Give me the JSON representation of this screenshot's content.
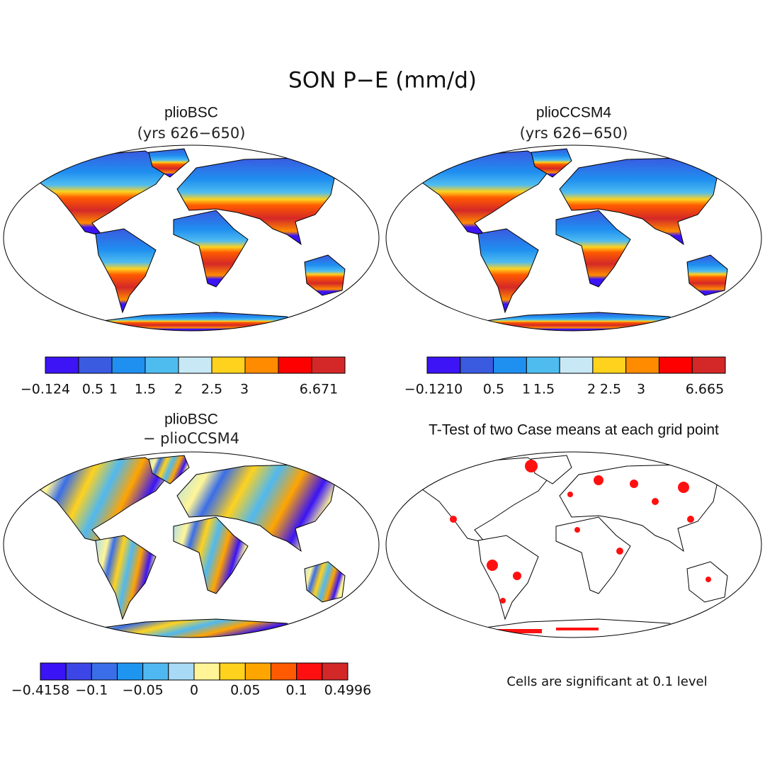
{
  "title": "SON P−E (mm/d)",
  "panels": [
    {
      "title": "plioBSC",
      "subtitle": "(yrs 626−650)",
      "colorbar": {
        "colors": [
          "#3c14f5",
          "#3a5ae0",
          "#1f8ff0",
          "#4fbcf0",
          "#c8e8f5",
          "#ffd21e",
          "#ff8c00",
          "#ff0000",
          "#d42828"
        ],
        "ticks": [
          {
            "value": -0.124,
            "label": "−0.124"
          },
          0.5,
          1,
          1.5,
          2,
          2.5,
          3,
          6.671
        ]
      }
    },
    {
      "title": "plioCCSM4",
      "subtitle": "(yrs 626−650)",
      "colorbar": {
        "colors": [
          "#3c14f5",
          "#3a5ae0",
          "#1f8ff0",
          "#4fbcf0",
          "#c8e8f5",
          "#ffd21e",
          "#ff8c00",
          "#ff0000",
          "#d42828"
        ],
        "ticks": [
          {
            "value": -0.121,
            "label": "−0.1210"
          },
          0.5,
          1,
          1.5,
          2,
          2.5,
          3,
          6.665
        ]
      }
    },
    {
      "title": "plioBSC",
      "subtitle": "− plioCCSM4",
      "colorbar": {
        "colors": [
          "#3a14f5",
          "#3c46e6",
          "#3a6ee8",
          "#1e96f0",
          "#50b8f0",
          "#a8daf5",
          "#fff596",
          "#ffd21e",
          "#ffa500",
          "#ff5a00",
          "#ff0f0f",
          "#d22828"
        ],
        "ticks": [
          {
            "value": -0.4158,
            "label": "−0.4158"
          },
          {
            "value": -0.1,
            "label": "−0.1"
          },
          {
            "value": -0.05,
            "label": "−0.05"
          },
          0,
          0.05,
          0.1,
          0.4996
        ]
      }
    },
    {
      "title": "T-Test of two Case means at each grid point",
      "note": "Cells are significant at 0.1 level"
    }
  ]
}
